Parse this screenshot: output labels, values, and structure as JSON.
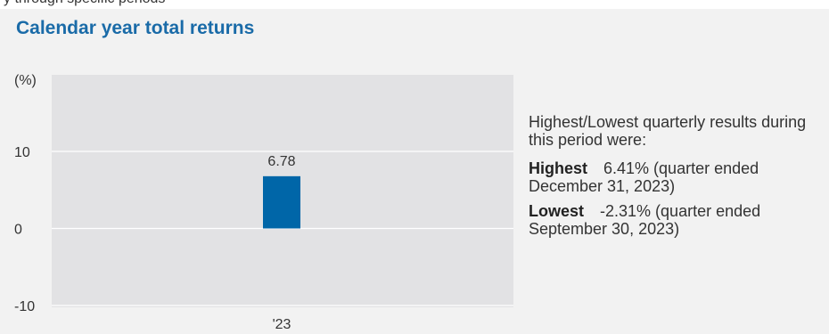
{
  "top_fragment": "y through specific periods",
  "title": "Calendar year total returns",
  "colors": {
    "bar": "#0066a8",
    "plot_bg": "#e2e2e4",
    "panel_bg": "#f2f2f2",
    "title": "#1a6ba8"
  },
  "chart_data": {
    "type": "bar",
    "title": "Calendar year total returns",
    "ylabel": "(%)",
    "xlabel": "",
    "categories": [
      "'23"
    ],
    "values": [
      6.78
    ],
    "data_labels": [
      "6.78"
    ],
    "ylim": [
      -10,
      13
    ],
    "yticks": [
      10,
      0,
      -10
    ],
    "grid": true,
    "legend": "none"
  },
  "note": {
    "intro": "Highest/Lowest quarterly results during this period were:",
    "highest_label": "Highest",
    "highest_value": "6.41% (quarter ended December 31, 2023)",
    "lowest_label": "Lowest",
    "lowest_value": "-2.31% (quarter ended September 30, 2023)"
  }
}
